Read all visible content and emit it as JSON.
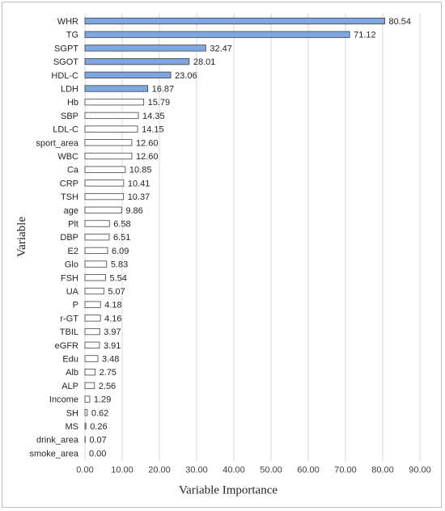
{
  "chart_data": {
    "type": "bar",
    "orientation": "horizontal",
    "title": "",
    "xlabel": "Variable Importance",
    "ylabel": "Variable",
    "xlim": [
      0,
      90
    ],
    "xticks": [
      "0.00",
      "10.00",
      "20.00",
      "30.00",
      "40.00",
      "50.00",
      "60.00",
      "70.00",
      "80.00",
      "90.00"
    ],
    "grid": "vertical",
    "highlight_count": 6,
    "highlight_color": "#7ea6e0",
    "default_color": "#ffffff",
    "bar_edge_color": "#404040",
    "categories": [
      "WHR",
      "TG",
      "SGPT",
      "SGOT",
      "HDL-C",
      "LDH",
      "Hb",
      "SBP",
      "LDL-C",
      "sport_area",
      "WBC",
      "Ca",
      "CRP",
      "TSH",
      "age",
      "Plt",
      "DBP",
      "E2",
      "Glo",
      "FSH",
      "UA",
      "P",
      "r-GT",
      "TBIL",
      "eGFR",
      "Edu",
      "Alb",
      "ALP",
      "Income",
      "SH",
      "MS",
      "drink_area",
      "smoke_area"
    ],
    "values": [
      80.54,
      71.12,
      32.47,
      28.01,
      23.06,
      16.87,
      15.79,
      14.35,
      14.15,
      12.6,
      12.6,
      10.85,
      10.41,
      10.37,
      9.86,
      6.58,
      6.51,
      6.09,
      5.83,
      5.54,
      5.07,
      4.18,
      4.16,
      3.97,
      3.91,
      3.48,
      2.75,
      2.56,
      1.29,
      0.62,
      0.26,
      0.07,
      0.0
    ],
    "value_labels": [
      "80.54",
      "71.12",
      "32.47",
      "28.01",
      "23.06",
      "16.87",
      "15.79",
      "14.35",
      "14.15",
      "12.60",
      "12.60",
      "10.85",
      "10.41",
      "10.37",
      "9.86",
      "6.58",
      "6.51",
      "6.09",
      "5.83",
      "5.54",
      "5.07",
      "4.18",
      "4.16",
      "3.97",
      "3.91",
      "3.48",
      "2.75",
      "2.56",
      "1.29",
      "0.62",
      "0.26",
      "0.07",
      "0.00"
    ]
  }
}
